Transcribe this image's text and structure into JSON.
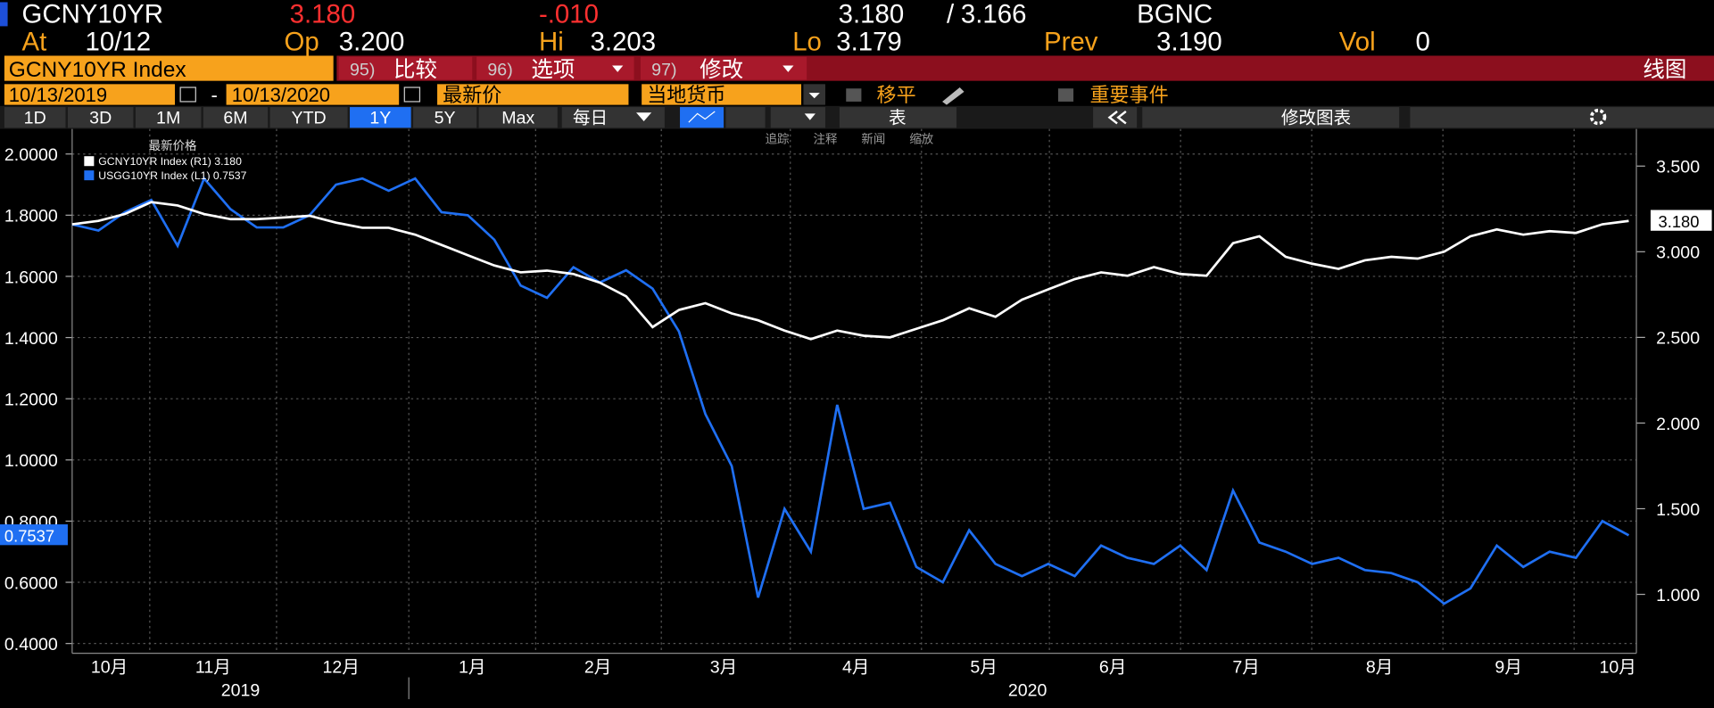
{
  "header": {
    "ticker": "GCNY10YR",
    "last": "3.180",
    "change": "-.010",
    "bid": "3.180",
    "separator": "/",
    "ask": "3.166",
    "source": "BGNC",
    "at_label": "At",
    "at": "10/12",
    "open_label": "Op",
    "open": "3.200",
    "high_label": "Hi",
    "high": "3.203",
    "low_label": "Lo",
    "low": "3.179",
    "prev_label": "Prev",
    "prev": "3.190",
    "vol_label": "Vol",
    "vol": "0"
  },
  "toolbar": {
    "security": "GCNY10YR Index",
    "compare_num": "95)",
    "compare": "比较",
    "options_num": "96)",
    "options": "选项",
    "edit_num": "97)",
    "edit": "修改",
    "chart_kind": "线图",
    "start_date": "10/13/2019",
    "dash": "-",
    "end_date": "10/13/2020",
    "field": "最新价",
    "currency": "当地货币",
    "moving_avg": "移平",
    "events": "重要事件",
    "periods": [
      "1D",
      "3D",
      "1M",
      "6M",
      "YTD",
      "1Y",
      "5Y",
      "Max"
    ],
    "frequency": "每日",
    "table": "表",
    "edit_chart": "修改图表",
    "tools": [
      "追踪",
      "注释",
      "新闻",
      "缩放"
    ]
  },
  "chart_data": {
    "type": "line",
    "legend_title": "最新价格",
    "series": [
      {
        "name": "GCNY10YR Index  (R1) 3.180",
        "axis": "y2",
        "color": "#ffffff",
        "last_label": "3.180",
        "values": [
          3.16,
          3.18,
          3.22,
          3.29,
          3.27,
          3.22,
          3.19,
          3.19,
          3.2,
          3.21,
          3.17,
          3.14,
          3.14,
          3.1,
          3.04,
          2.98,
          2.92,
          2.88,
          2.89,
          2.87,
          2.82,
          2.74,
          2.56,
          2.66,
          2.7,
          2.64,
          2.6,
          2.54,
          2.49,
          2.54,
          2.51,
          2.5,
          2.55,
          2.6,
          2.67,
          2.62,
          2.72,
          2.78,
          2.84,
          2.88,
          2.86,
          2.91,
          2.87,
          2.86,
          3.05,
          3.09,
          2.97,
          2.93,
          2.9,
          2.95,
          2.97,
          2.96,
          3.0,
          3.09,
          3.13,
          3.1,
          3.12,
          3.11,
          3.16,
          3.18
        ]
      },
      {
        "name": "USGG10YR Index  (L1) 0.7537",
        "axis": "y",
        "color": "#1f6ff2",
        "last_label": "0.7537",
        "values": [
          1.77,
          1.75,
          1.81,
          1.85,
          1.7,
          1.92,
          1.82,
          1.76,
          1.76,
          1.8,
          1.9,
          1.92,
          1.88,
          1.92,
          1.81,
          1.8,
          1.72,
          1.57,
          1.53,
          1.63,
          1.58,
          1.62,
          1.56,
          1.42,
          1.15,
          0.98,
          0.55,
          0.84,
          0.7,
          1.18,
          0.84,
          0.86,
          0.65,
          0.6,
          0.77,
          0.66,
          0.62,
          0.66,
          0.62,
          0.72,
          0.68,
          0.66,
          0.72,
          0.64,
          0.9,
          0.73,
          0.7,
          0.66,
          0.68,
          0.64,
          0.63,
          0.6,
          0.53,
          0.58,
          0.72,
          0.65,
          0.7,
          0.68,
          0.8,
          0.7537
        ]
      }
    ],
    "ylim": [
      0.368,
      2.082
    ],
    "yticks": [
      {
        "value": 2,
        "label": "2.0000"
      },
      {
        "value": 1.8,
        "label": "1.8000"
      },
      {
        "value": 1.6,
        "label": "1.6000"
      },
      {
        "value": 1.4,
        "label": "1.4000"
      },
      {
        "value": 1.2,
        "label": "1.2000"
      },
      {
        "value": 1,
        "label": "1.0000"
      },
      {
        "value": 0.8,
        "label": "0.8000"
      },
      {
        "value": 0.6,
        "label": "0.6000"
      },
      {
        "value": 0.4,
        "label": "0.4000"
      }
    ],
    "y2lim": [
      0.656,
      3.717
    ],
    "y2ticks": [
      {
        "value": 3.5,
        "label": "3.500"
      },
      {
        "value": 3,
        "label": "3.000"
      },
      {
        "value": 2.5,
        "label": "2.500"
      },
      {
        "value": 2,
        "label": "2.000"
      },
      {
        "value": 1.5,
        "label": "1.500"
      },
      {
        "value": 1,
        "label": "1.000"
      }
    ],
    "months": [
      "10月",
      "11月",
      "12月",
      "1月",
      "2月",
      "3月",
      "4月",
      "5月",
      "6月",
      "7月",
      "8月",
      "9月",
      "10月"
    ],
    "years": [
      "2019",
      "2020"
    ],
    "grid": true
  }
}
